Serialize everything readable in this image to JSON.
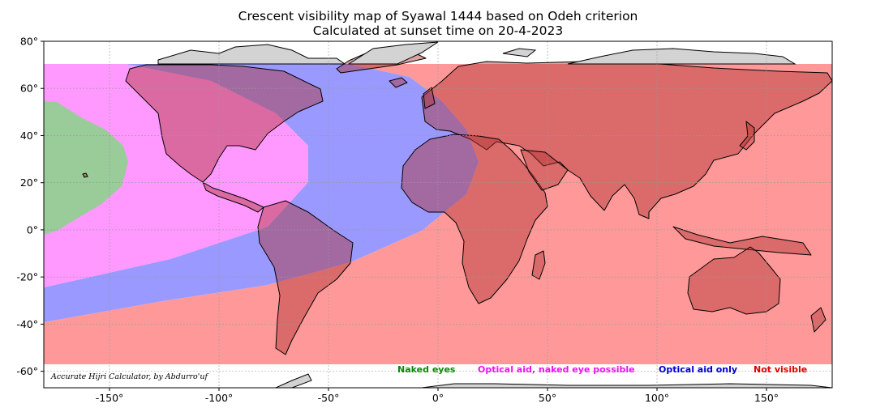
{
  "title": "Crescent visibility map of Syawal 1444 based on Odeh criterion",
  "subtitle": "Calculated at sunset time on 20-4-2023",
  "credit": "Accurate Hijri Calculator, by Abdurro'uf",
  "x_ticks": [
    "-150°",
    "-100°",
    "-50°",
    "0°",
    "50°",
    "100°",
    "150°"
  ],
  "y_ticks": [
    "80°",
    "60°",
    "40°",
    "20°",
    "0°",
    "-20°",
    "-40°",
    "-60°"
  ],
  "legend": [
    {
      "label": "Naked eyes",
      "color": "#0a8a0a"
    },
    {
      "label": "Optical aid, naked eye possible",
      "color": "#ee11ee"
    },
    {
      "label": "Optical aid only",
      "color": "#0000cc"
    },
    {
      "label": "Not visible",
      "color": "#dd0000"
    }
  ],
  "zone_colors": {
    "naked_eyes": "#99cc99",
    "optical_naked_possible": "#ff99ff",
    "optical_only": "#9999ff",
    "not_visible": "#ff9999",
    "land_overlay": "#b03030",
    "outside_land": "#d3d3d3"
  },
  "map": {
    "lon_range": [
      -180,
      180
    ],
    "lat_range": [
      -67,
      80
    ],
    "computed_lat_range": [
      -60,
      70
    ]
  }
}
